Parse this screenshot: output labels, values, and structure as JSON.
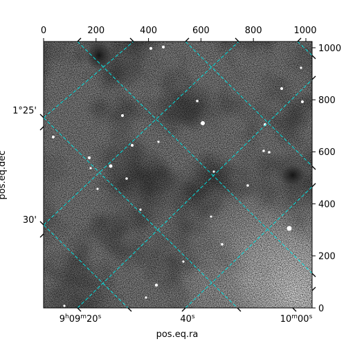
{
  "figure": {
    "xlabel_world": "pos.eq.ra",
    "ylabel_world": "pos.eq.dec",
    "grid_color": "#00ffff",
    "frame_color": "#000000"
  },
  "chart_data": {
    "type": "heatmap",
    "colormap": "gray",
    "pixel_axes": {
      "x": {
        "range": [
          0,
          1024
        ],
        "ticks": [
          "0",
          "200",
          "400",
          "600",
          "800",
          "1000"
        ]
      },
      "y": {
        "range": [
          0,
          1024
        ],
        "ticks": [
          "0",
          "200",
          "400",
          "600",
          "800",
          "1000"
        ]
      }
    },
    "world_axes": {
      "ra": {
        "label": "pos.eq.ra",
        "ticks": [
          {
            "h": "9",
            "m": "09",
            "s": "20"
          },
          {
            "s": "40"
          },
          {
            "h": "10",
            "m": "00",
            "s": ""
          }
        ]
      },
      "dec": {
        "label": "pos.eq.dec",
        "ticks": [
          "1°25'",
          "30'"
        ]
      }
    },
    "grid": true
  }
}
